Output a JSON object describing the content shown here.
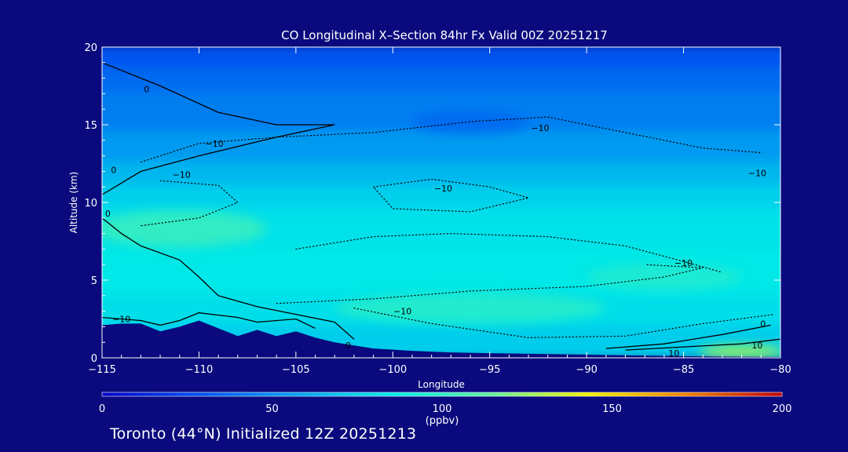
{
  "chart_data": {
    "type": "heatmap",
    "title": "CO Longitudinal X–Section 84hr  Fx Valid 00Z 20251217",
    "xlabel": "Longitude",
    "ylabel": "Altitude (km)",
    "xlim": [
      -115,
      -80
    ],
    "ylim": [
      0,
      20
    ],
    "x_ticks": [
      -115,
      -110,
      -105,
      -100,
      -95,
      -90,
      -85,
      -80
    ],
    "x_tick_labels": [
      "−115",
      "−110",
      "−105",
      "−100",
      "−95",
      "−90",
      "−85",
      "−80"
    ],
    "y_ticks": [
      0,
      5,
      10,
      15,
      20
    ],
    "y_tick_labels": [
      "0",
      "5",
      "10",
      "15",
      "20"
    ],
    "colorbar": {
      "min": 0,
      "max": 200,
      "ticks": [
        0,
        50,
        100,
        150,
        200
      ],
      "tick_labels": [
        "0",
        "50",
        "100",
        "150",
        "200"
      ],
      "label": "(ppbv)",
      "colors": [
        "#0000c8",
        "#0050f0",
        "#00a0f0",
        "#00e8e8",
        "#60f0a0",
        "#f0f000",
        "#f08000",
        "#c00000"
      ]
    },
    "bands": [
      {
        "ymin": 18.5,
        "ymax": 20.0,
        "value": 30
      },
      {
        "ymin": 17.0,
        "ymax": 18.5,
        "value": 38
      },
      {
        "ymin": 14.5,
        "ymax": 17.0,
        "value": 45
      },
      {
        "ymin": 12.5,
        "ymax": 14.5,
        "value": 55
      },
      {
        "ymin": 11.0,
        "ymax": 12.5,
        "value": 66
      },
      {
        "ymin": 9.5,
        "ymax": 11.0,
        "value": 76
      },
      {
        "ymin": 7.0,
        "ymax": 9.5,
        "value": 83
      },
      {
        "ymin": 4.0,
        "ymax": 7.0,
        "value": 86
      },
      {
        "ymin": 2.0,
        "ymax": 4.0,
        "value": 82
      },
      {
        "ymin": 0.0,
        "ymax": 2.0,
        "value": 75
      }
    ],
    "patches": [
      {
        "lon": -111,
        "alt": 8.3,
        "rlon": 4.5,
        "ralt": 1.2,
        "value": 100
      },
      {
        "lon": -96,
        "alt": 3.2,
        "rlon": 7,
        "ralt": 1.0,
        "value": 96
      },
      {
        "lon": -86,
        "alt": 5.2,
        "rlon": 4,
        "ralt": 0.9,
        "value": 94
      },
      {
        "lon": -82,
        "alt": 0.4,
        "rlon": 2.2,
        "ralt": 0.4,
        "value": 125
      },
      {
        "lon": -96,
        "alt": 15.2,
        "rlon": 3,
        "ralt": 0.7,
        "value": 38
      }
    ],
    "terrain": [
      [
        -115,
        2.1
      ],
      [
        -114,
        2.2
      ],
      [
        -113,
        2.2
      ],
      [
        -112,
        1.7
      ],
      [
        -111,
        2.0
      ],
      [
        -110,
        2.4
      ],
      [
        -109,
        1.9
      ],
      [
        -108,
        1.4
      ],
      [
        -107,
        1.8
      ],
      [
        -106,
        1.4
      ],
      [
        -105,
        1.7
      ],
      [
        -104,
        1.3
      ],
      [
        -103,
        1.0
      ],
      [
        -101,
        0.6
      ],
      [
        -99,
        0.45
      ],
      [
        -97,
        0.35
      ],
      [
        -95,
        0.3
      ],
      [
        -90,
        0.2
      ],
      [
        -85,
        0.1
      ],
      [
        -80,
        0.05
      ]
    ],
    "contours": [
      {
        "level": 0,
        "style": "solid",
        "points": [
          [
            -115,
            19.0
          ],
          [
            -112,
            17.5
          ],
          [
            -109,
            15.8
          ],
          [
            -106,
            15.0
          ],
          [
            -103,
            15.0
          ],
          [
            -106,
            14.2
          ],
          [
            -110,
            13.0
          ],
          [
            -113,
            12.0
          ],
          [
            -115,
            10.5
          ]
        ]
      },
      {
        "level": 0,
        "style": "solid",
        "points": [
          [
            -115,
            9.0
          ],
          [
            -114,
            8.0
          ],
          [
            -113,
            7.2
          ],
          [
            -111,
            6.3
          ],
          [
            -110,
            5.2
          ],
          [
            -109,
            4.0
          ],
          [
            -107,
            3.3
          ],
          [
            -105,
            2.8
          ],
          [
            -103,
            2.3
          ],
          [
            -102,
            1.2
          ]
        ]
      },
      {
        "level": 0,
        "style": "solid",
        "points": [
          [
            -89,
            0.6
          ],
          [
            -86,
            0.9
          ],
          [
            -83,
            1.5
          ],
          [
            -80.5,
            2.1
          ]
        ]
      },
      {
        "level": 10,
        "style": "solid",
        "points": [
          [
            -115,
            2.6
          ],
          [
            -113,
            2.4
          ],
          [
            -112,
            2.1
          ],
          [
            -111,
            2.4
          ],
          [
            -110,
            2.9
          ],
          [
            -108,
            2.6
          ],
          [
            -107,
            2.3
          ],
          [
            -105,
            2.5
          ],
          [
            -104,
            1.9
          ]
        ]
      },
      {
        "level": 10,
        "style": "solid",
        "points": [
          [
            -88,
            0.5
          ],
          [
            -85,
            0.7
          ],
          [
            -82,
            0.9
          ],
          [
            -80,
            1.2
          ]
        ]
      },
      {
        "level": -10,
        "style": "dotted",
        "points": [
          [
            -113,
            12.6
          ],
          [
            -110,
            13.8
          ],
          [
            -106,
            14.2
          ],
          [
            -101,
            14.5
          ],
          [
            -96,
            15.2
          ],
          [
            -92,
            15.5
          ],
          [
            -88,
            14.5
          ],
          [
            -84,
            13.5
          ],
          [
            -81,
            13.2
          ]
        ]
      },
      {
        "level": -10,
        "style": "dotted",
        "points": [
          [
            -112,
            11.4
          ],
          [
            -109,
            11.1
          ],
          [
            -108,
            10.0
          ],
          [
            -110,
            9.0
          ],
          [
            -113,
            8.5
          ]
        ]
      },
      {
        "level": -10,
        "style": "dotted",
        "points": [
          [
            -101,
            11.0
          ],
          [
            -98,
            11.5
          ],
          [
            -95,
            11.0
          ],
          [
            -93,
            10.3
          ],
          [
            -96,
            9.4
          ],
          [
            -100,
            9.6
          ],
          [
            -101,
            11.0
          ]
        ]
      },
      {
        "level": -10,
        "style": "dotted",
        "points": [
          [
            -105,
            7.0
          ],
          [
            -101,
            7.8
          ],
          [
            -97,
            8.0
          ],
          [
            -92,
            7.8
          ],
          [
            -88,
            7.2
          ],
          [
            -85,
            6.2
          ],
          [
            -83,
            5.5
          ]
        ]
      },
      {
        "level": -10,
        "style": "dotted",
        "points": [
          [
            -106,
            3.5
          ],
          [
            -101,
            3.8
          ],
          [
            -96,
            4.3
          ],
          [
            -90,
            4.6
          ],
          [
            -86,
            5.2
          ],
          [
            -84,
            5.8
          ],
          [
            -87,
            6.0
          ]
        ]
      },
      {
        "level": -10,
        "style": "dotted",
        "points": [
          [
            -102,
            3.2
          ],
          [
            -98,
            2.2
          ],
          [
            -93,
            1.3
          ],
          [
            -88,
            1.4
          ],
          [
            -84,
            2.2
          ],
          [
            -80.3,
            2.8
          ]
        ]
      }
    ],
    "contour_labels": [
      {
        "text": "0",
        "lon": -112.7,
        "alt": 17.3
      },
      {
        "text": "−10",
        "lon": -109.2,
        "alt": 13.8
      },
      {
        "text": "0",
        "lon": -114.4,
        "alt": 12.1
      },
      {
        "text": "−10",
        "lon": -110.9,
        "alt": 11.8
      },
      {
        "text": "−10",
        "lon": -92.4,
        "alt": 14.8
      },
      {
        "text": "−10",
        "lon": -81.2,
        "alt": 11.9
      },
      {
        "text": "−10",
        "lon": -97.4,
        "alt": 10.9
      },
      {
        "text": "0",
        "lon": -114.7,
        "alt": 9.3
      },
      {
        "text": "−10",
        "lon": -85.0,
        "alt": 6.1
      },
      {
        "text": "−10",
        "lon": -99.5,
        "alt": 3.0
      },
      {
        "text": "−10",
        "lon": -114.0,
        "alt": 2.5
      },
      {
        "text": "0",
        "lon": -80.9,
        "alt": 2.2
      },
      {
        "text": "10",
        "lon": -81.2,
        "alt": 0.8
      },
      {
        "text": "0",
        "lon": -102.3,
        "alt": 0.8
      },
      {
        "text": "10",
        "lon": -85.5,
        "alt": 0.3
      }
    ]
  },
  "footer": {
    "text": "Toronto (44°N) Initialized 12Z 20251213"
  }
}
